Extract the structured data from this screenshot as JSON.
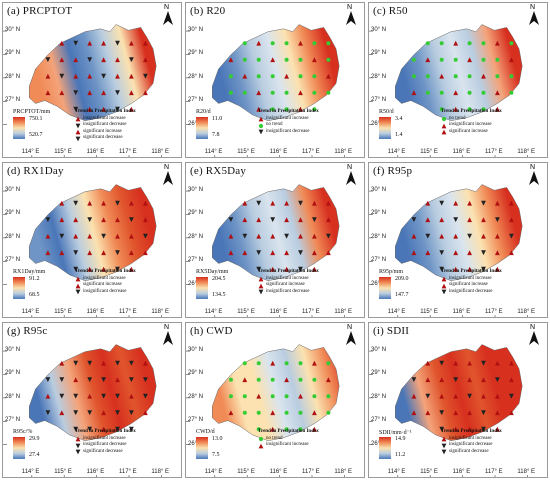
{
  "lat_labels": [
    "30° N",
    "29° N",
    "28° N",
    "27° N",
    "26° N"
  ],
  "lon_labels": [
    "114° E",
    "115° E",
    "116° E",
    "117° E",
    "118° E"
  ],
  "north_label": "N",
  "trend_title": "Trend in Precipitation Index",
  "colors": {
    "high": "#d7301f",
    "mid_high": "#f08a56",
    "mid": "#fbe2b0",
    "mid_low": "#b9cde0",
    "low": "#4a76b8",
    "green": "#33cc33",
    "marker_red": "#b01010"
  },
  "panels": [
    {
      "title": "(a) PRCPTOT",
      "legend_title": "PRCPTOT/mm",
      "max": "750.1",
      "min": "520.7",
      "trends": [
        "insignificant increase",
        "insignificant decrease",
        "significant increase",
        "significant decrease"
      ]
    },
    {
      "title": "(b) R20",
      "legend_title": "R20/d",
      "max": "11.0",
      "min": "7.8",
      "trends": [
        "insignificant increase",
        "no trend",
        "insignificant decrease"
      ]
    },
    {
      "title": "(c) R50",
      "legend_title": "R50/d",
      "max": "3.4",
      "min": "1.4",
      "trends": [
        "no trend",
        "insignificant increase",
        "significant increase"
      ]
    },
    {
      "title": "(d) RX1Day",
      "legend_title": "RX1Day/mm",
      "max": "91.2",
      "min": "68.5",
      "trends": [
        "insignificant increase",
        "significant increase",
        "insignificant decrease"
      ]
    },
    {
      "title": "(e) RX5Day",
      "legend_title": "RX5Day/mm",
      "max": "204.5",
      "min": "134.5",
      "trends": [
        "insignificant increase",
        "significant increase",
        "insignificant decrease"
      ]
    },
    {
      "title": "(f) R95p",
      "legend_title": "R95p/mm",
      "max": "209.0",
      "min": "147.7",
      "trends": [
        "insignificant increase",
        "significant increase",
        "insignificant decrease"
      ]
    },
    {
      "title": "(g) R95c",
      "legend_title": "R95c/%",
      "max": "29.9",
      "min": "27.4",
      "trends": [
        "insignificant increase",
        "insignificant decrease",
        "significant decrease"
      ]
    },
    {
      "title": "(h) CWD",
      "legend_title": "CWD/d",
      "max": "13.0",
      "min": "7.5",
      "trends": [
        "no trend",
        "insignificant increase"
      ]
    },
    {
      "title": "(i) SDII",
      "legend_title": "SDII/mm·d⁻¹",
      "max": "14.9",
      "min": "11.2",
      "trends": [
        "insignificant increase",
        "insignificant decrease",
        "significant decrease"
      ]
    }
  ]
}
